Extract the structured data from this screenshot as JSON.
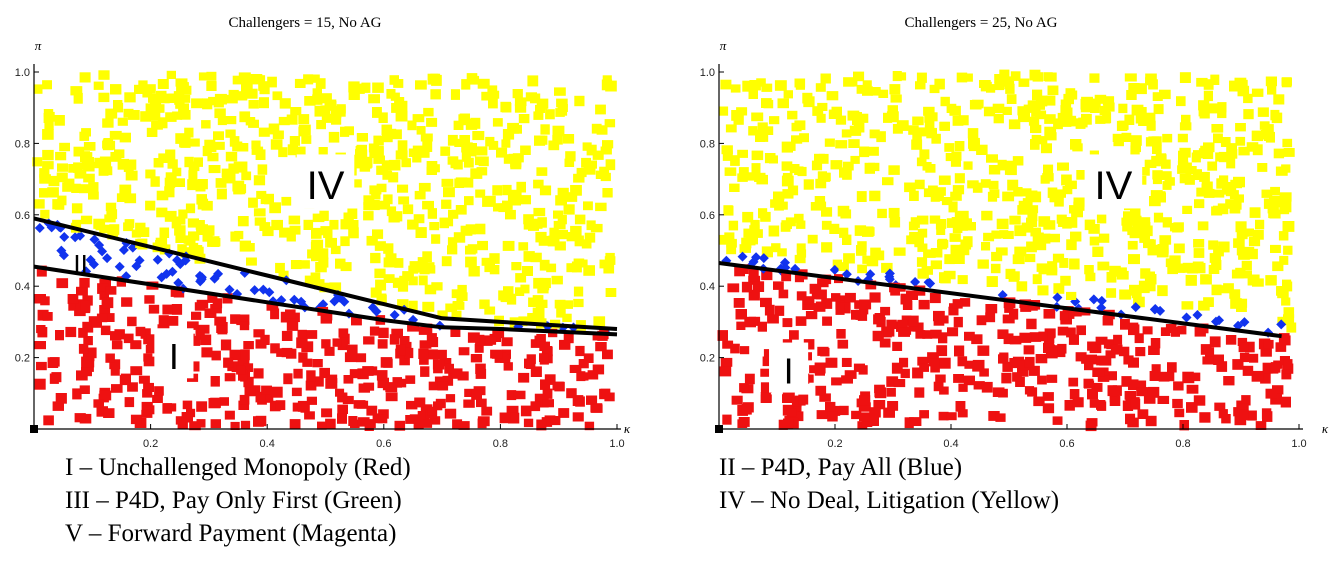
{
  "legend": {
    "left": [
      "I – Unchallenged Monopoly (Red)",
      "III – P4D, Pay Only First  (Green)",
      "V – Forward Payment (Magenta)"
    ],
    "right": [
      "II – P4D,  Pay All (Blue)",
      "IV – No Deal, Litigation (Yellow)"
    ]
  },
  "colors": {
    "monopoly": "#ee1111",
    "pay_all": "#1133ee",
    "litigation": "#ffff00",
    "boundary": "#000000"
  },
  "chart_data": [
    {
      "type": "scatter",
      "title": "Challengers = 15, No AG",
      "xlabel": "κ",
      "ylabel": "π",
      "xlim": [
        0,
        1
      ],
      "ylim": [
        0,
        1
      ],
      "xticks": [
        "0.2",
        "0.4",
        "0.6",
        "0.8",
        "1.0"
      ],
      "yticks": [
        "0.2",
        "0.4",
        "0.6",
        "0.8",
        "1.0"
      ],
      "grid": false,
      "region_labels": [
        {
          "text": "I",
          "x": 0.24,
          "y": 0.2
        },
        {
          "text": "II",
          "x": 0.08,
          "y": 0.46
        },
        {
          "text": "IV",
          "x": 0.5,
          "y": 0.68
        }
      ],
      "series": [
        {
          "name": "I – Unchallenged Monopoly",
          "region": "below lower boundary",
          "color": "#ee1111"
        },
        {
          "name": "II – P4D, Pay All",
          "region": "between boundaries",
          "color": "#1133ee"
        },
        {
          "name": "IV – No Deal, Litigation",
          "region": "above upper boundary",
          "color": "#ffff00"
        }
      ],
      "boundaries": [
        {
          "x": [
            0,
            0.2,
            0.4,
            0.6,
            0.7,
            0.8,
            1.0
          ],
          "y": [
            0.59,
            0.51,
            0.43,
            0.35,
            0.31,
            0.3,
            0.28
          ]
        },
        {
          "x": [
            0,
            0.2,
            0.4,
            0.6,
            0.7,
            0.8,
            1.0
          ],
          "y": [
            0.455,
            0.405,
            0.355,
            0.305,
            0.285,
            0.28,
            0.265
          ]
        }
      ],
      "sample_points": 1200
    },
    {
      "type": "scatter",
      "title": "Challengers = 25, No AG",
      "xlabel": "κ",
      "ylabel": "π",
      "xlim": [
        0,
        1
      ],
      "ylim": [
        0,
        1
      ],
      "xticks": [
        "0.2",
        "0.4",
        "0.6",
        "0.8",
        "1.0"
      ],
      "yticks": [
        "0.2",
        "0.4",
        "0.6",
        "0.8",
        "1.0"
      ],
      "grid": false,
      "region_labels": [
        {
          "text": "I",
          "x": 0.12,
          "y": 0.16
        },
        {
          "text": "IV",
          "x": 0.68,
          "y": 0.68
        }
      ],
      "series": [
        {
          "name": "I – Unchallenged Monopoly",
          "region": "below boundary",
          "color": "#ee1111"
        },
        {
          "name": "II – P4D, Pay All",
          "region": "just above boundary",
          "color": "#1133ee"
        },
        {
          "name": "IV – No Deal, Litigation",
          "region": "above boundary",
          "color": "#ffff00"
        }
      ],
      "boundaries": [
        {
          "x": [
            0,
            0.97
          ],
          "y": [
            0.465,
            0.26
          ]
        }
      ],
      "sample_points": 1200
    }
  ]
}
